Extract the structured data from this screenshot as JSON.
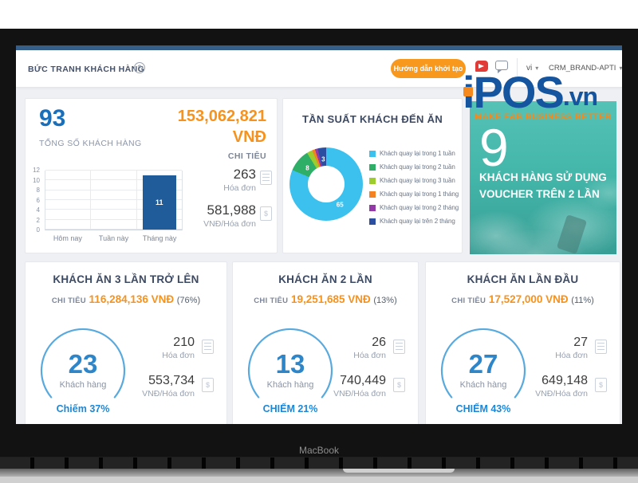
{
  "frame": {
    "device_label": "MacBook"
  },
  "header": {
    "title": "BỨC TRANH KHÁCH HÀNG",
    "help_icon": "?",
    "guide_button": "Hướng dẫn khởi tạo",
    "lang": "vi",
    "account": "CRM_BRAND-APTI"
  },
  "overview": {
    "total_customers": "93",
    "total_customers_label": "TỔNG SỐ KHÁCH HÀNG",
    "spend_value": "153,062,821",
    "spend_currency": "VNĐ",
    "spend_label": "CHI TIÊU",
    "invoices": "263",
    "invoices_label": "Hóa đơn",
    "avg_per_invoice": "581,988",
    "avg_per_invoice_label": "VNĐ/Hóa đơn"
  },
  "chart_data": [
    {
      "type": "bar",
      "title": "TỔNG SỐ KHÁCH HÀNG",
      "categories": [
        "Hôm nay",
        "Tuần này",
        "Tháng này"
      ],
      "values": [
        0,
        0,
        11
      ],
      "ylim": [
        0,
        12
      ],
      "yticks": [
        0,
        2,
        4,
        6,
        8,
        10,
        12
      ],
      "bar_color": "#1f5c99",
      "grid": true
    },
    {
      "type": "pie",
      "title": "TẦN SUẤT KHÁCH ĐẾN ĂN",
      "labels": [
        "Khách quay lại trong 1 tuần",
        "Khách quay lại trong 2 tuần",
        "Khách quay lại trong 3 tuần",
        "Khách quay lại trong 1 tháng",
        "Khách quay lại trong 2 tháng",
        "Khách quay lại trên 2 tháng"
      ],
      "values": [
        65,
        8,
        2,
        1,
        1,
        3
      ],
      "colors": [
        "#3cc1ef",
        "#2fae68",
        "#9ccc2e",
        "#f58220",
        "#9339a8",
        "#2b4ea0"
      ],
      "legend_position": "right",
      "donut": true
    }
  ],
  "banner": {
    "logo_main": "iPOS",
    "logo_suffix": ".vn",
    "tagline": "MAKE F&B BUSINESS BETTER",
    "number": "9",
    "line1": "KHÁCH HÀNG SỬ DỤNG",
    "line2": "VOUCHER TRÊN 2 LẦN",
    "teal": "#43b5a9",
    "orange": "#f5891d"
  },
  "segments": [
    {
      "title": "KHÁCH ĂN 3 LẦN TRỞ LÊN",
      "spend_label": "CHI TIÊU",
      "spend": "116,284,136 VNĐ",
      "percent": "(76%)",
      "customers": "23",
      "customers_label": "Khách hàng",
      "share": "Chiếm 37%",
      "invoices": "210",
      "invoices_label": "Hóa đơn",
      "avg": "553,734",
      "avg_label": "VNĐ/Hóa đơn"
    },
    {
      "title": "KHÁCH ĂN 2 LẦN",
      "spend_label": "CHI TIÊU",
      "spend": "19,251,685 VNĐ",
      "percent": "(13%)",
      "customers": "13",
      "customers_label": "Khách hàng",
      "share": "CHIẾM 21%",
      "invoices": "26",
      "invoices_label": "Hóa đơn",
      "avg": "740,449",
      "avg_label": "VNĐ/Hóa đơn"
    },
    {
      "title": "KHÁCH ĂN LẦN ĐẦU",
      "spend_label": "CHI TIÊU",
      "spend": "17,527,000 VNĐ",
      "percent": "(11%)",
      "customers": "27",
      "customers_label": "Khách hàng",
      "share": "CHIẾM 43%",
      "invoices": "27",
      "invoices_label": "Hóa đơn",
      "avg": "649,148",
      "avg_label": "VNĐ/Hóa đơn"
    }
  ]
}
